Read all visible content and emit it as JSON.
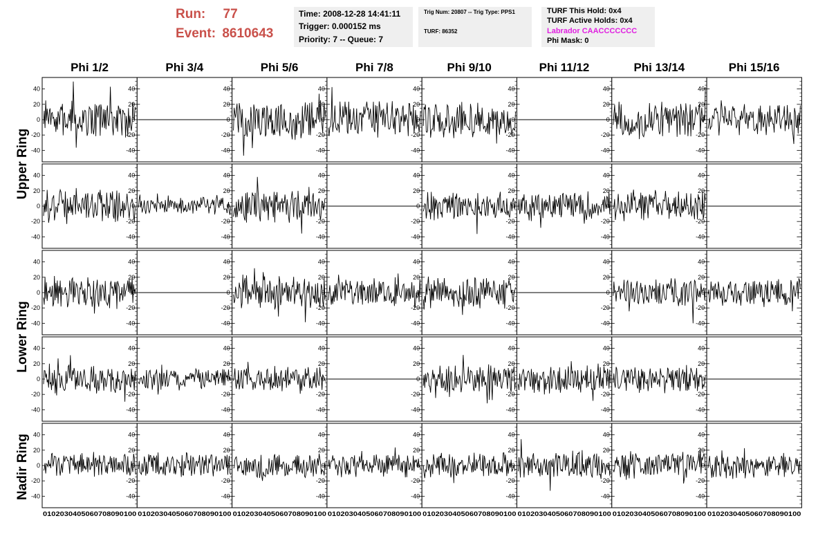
{
  "header": {
    "run_label": "Run:",
    "run_value": "77",
    "event_label": "Event:",
    "event_value": "8610643",
    "time": "Time: 2008-12-28 14:41:11",
    "trigger": "Trigger: 0.000152 ms",
    "priority_queue": "Priority: 7 -- Queue: 7",
    "trig_num": "Trig Num: 20807 -- Trig Type: PPS1",
    "turf": "TURF: 86352",
    "turf_this_hold": "TURF This Hold: 0x4",
    "turf_active_holds": "TURF Active Holds: 0x4",
    "labrador": "Labrador CAACCCCCCC",
    "phi_mask": "Phi Mask: 0",
    "labrador_color": "#e01fe0",
    "run_color": "#c9504a"
  },
  "columns": [
    "Phi 1/2",
    "Phi 3/4",
    "Phi 5/6",
    "Phi 7/8",
    "Phi 9/10",
    "Phi 11/12",
    "Phi 13/14",
    "Phi 15/16"
  ],
  "rows": [
    {
      "label": "Upper Ring",
      "span": [
        0,
        1
      ]
    },
    {
      "label": "Lower Ring",
      "span": [
        2,
        3
      ]
    },
    {
      "label": "Nadir Ring",
      "span": [
        4,
        4
      ]
    }
  ],
  "chart_data": {
    "type": "line",
    "panel_rows": 5,
    "panel_cols": 8,
    "x_range": [
      0,
      100
    ],
    "y_range": [
      -55,
      55
    ],
    "x_ticks": [
      "0",
      "10",
      "20",
      "30",
      "40",
      "50",
      "60",
      "70",
      "80",
      "90",
      "100"
    ],
    "y_ticks": [
      -40,
      -20,
      0,
      20,
      40
    ],
    "flat_panels": [
      [
        0,
        1
      ],
      [
        0,
        5
      ],
      [
        1,
        3
      ],
      [
        1,
        7
      ],
      [
        2,
        1
      ],
      [
        2,
        5
      ],
      [
        3,
        3
      ],
      [
        3,
        7
      ]
    ],
    "amplitudes": [
      [
        20,
        0,
        22,
        20,
        20,
        0,
        20,
        18
      ],
      [
        20,
        10,
        20,
        0,
        15,
        16,
        18,
        0
      ],
      [
        18,
        0,
        18,
        16,
        18,
        0,
        16,
        16
      ],
      [
        16,
        12,
        14,
        0,
        16,
        16,
        16,
        0
      ],
      [
        14,
        14,
        14,
        14,
        14,
        16,
        15,
        14
      ]
    ]
  }
}
